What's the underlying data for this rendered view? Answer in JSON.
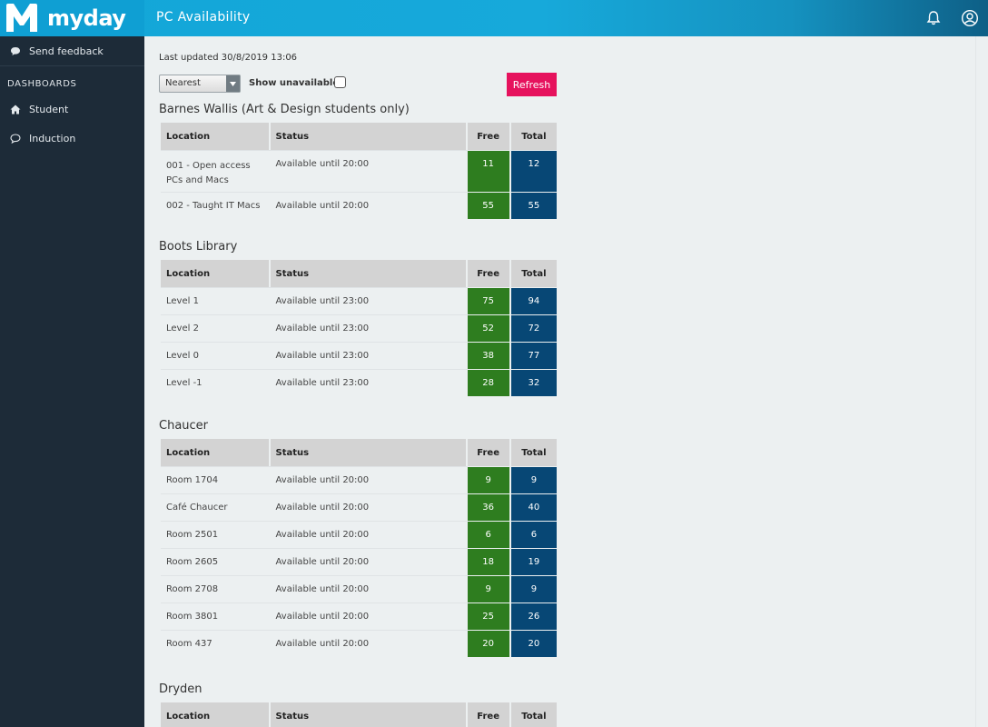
{
  "header": {
    "brand": "myday",
    "title": "PC Availability",
    "icons": [
      "bell-icon",
      "user-icon"
    ]
  },
  "sidebar": {
    "items_top": [
      {
        "label": "Send feedback",
        "icon": "speech-bubble-icon"
      }
    ],
    "section_heading": "DASHBOARDS",
    "items": [
      {
        "label": "Student",
        "icon": "home-icon"
      },
      {
        "label": "Induction",
        "icon": "speech-bubble-icon"
      }
    ]
  },
  "main": {
    "last_updated": "Last updated 30/8/2019 13:06",
    "sort_select": "Nearest",
    "show_unavailable_label": "Show unavailable",
    "refresh_label": "Refresh",
    "columns": {
      "location": "Location",
      "status": "Status",
      "free": "Free",
      "total": "Total"
    },
    "buildings": [
      {
        "name": "Barnes Wallis (Art & Design students only)",
        "rows": [
          {
            "location": "001 - Open access PCs and Macs",
            "status": "Available until 20:00",
            "free": "11",
            "total": "12"
          },
          {
            "location": "002 - Taught IT Macs",
            "status": "Available until 20:00",
            "free": "55",
            "total": "55"
          }
        ]
      },
      {
        "name": "Boots Library",
        "rows": [
          {
            "location": "Level 1",
            "status": "Available until 23:00",
            "free": "75",
            "total": "94"
          },
          {
            "location": "Level 2",
            "status": "Available until 23:00",
            "free": "52",
            "total": "72"
          },
          {
            "location": "Level 0",
            "status": "Available until 23:00",
            "free": "38",
            "total": "77"
          },
          {
            "location": "Level -1",
            "status": "Available until 23:00",
            "free": "28",
            "total": "32"
          }
        ]
      },
      {
        "name": "Chaucer",
        "rows": [
          {
            "location": "Room 1704",
            "status": "Available until 20:00",
            "free": "9",
            "total": "9"
          },
          {
            "location": "Café Chaucer",
            "status": "Available until 20:00",
            "free": "36",
            "total": "40"
          },
          {
            "location": "Room 2501",
            "status": "Available until 20:00",
            "free": "6",
            "total": "6"
          },
          {
            "location": "Room 2605",
            "status": "Available until 20:00",
            "free": "18",
            "total": "19"
          },
          {
            "location": "Room 2708",
            "status": "Available until 20:00",
            "free": "9",
            "total": "9"
          },
          {
            "location": "Room 3801",
            "status": "Available until 20:00",
            "free": "25",
            "total": "26"
          },
          {
            "location": "Room 437",
            "status": "Available until 20:00",
            "free": "20",
            "total": "20"
          }
        ]
      },
      {
        "name": "Dryden",
        "rows": []
      }
    ]
  },
  "colors": {
    "header": "#17a9da",
    "sidebar": "#1d2b38",
    "free": "#2e7d1f",
    "total": "#074775",
    "refresh": "#e6125d"
  }
}
